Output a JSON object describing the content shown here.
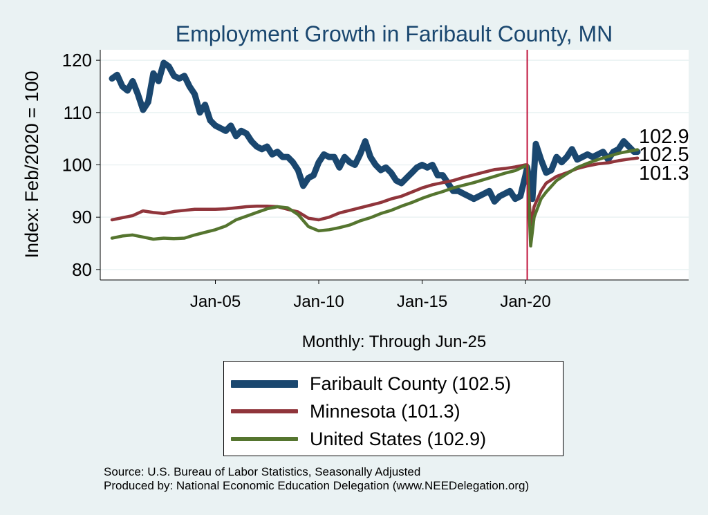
{
  "chart_data": {
    "type": "line",
    "title": "Employment Growth in Faribault  County, MN",
    "ylabel": "Index: Feb/2020 = 100",
    "xlabel": "Monthly: Through Jun-25",
    "x_range": [
      "2000-01",
      "2025-06"
    ],
    "ylim": [
      78,
      122
    ],
    "y_ticks": [
      80,
      90,
      100,
      110,
      120
    ],
    "x_ticks": [
      {
        "date": "2005-01",
        "label": "Jan-05"
      },
      {
        "date": "2010-01",
        "label": "Jan-10"
      },
      {
        "date": "2015-01",
        "label": "Jan-15"
      },
      {
        "date": "2020-01",
        "label": "Jan-20"
      }
    ],
    "reference_line": {
      "date": "2020-02",
      "color": "#c0143c"
    },
    "grid": true,
    "end_labels": [
      "102.9",
      "102.5",
      "101.3"
    ],
    "series": [
      {
        "name": "Faribault  County",
        "legend": "Faribault  County (102.5)",
        "color": "#1a476f",
        "dates": [
          "2000-01",
          "2000-04",
          "2000-07",
          "2000-10",
          "2001-01",
          "2001-04",
          "2001-07",
          "2001-10",
          "2002-01",
          "2002-04",
          "2002-07",
          "2002-10",
          "2003-01",
          "2003-04",
          "2003-07",
          "2003-10",
          "2004-01",
          "2004-04",
          "2004-07",
          "2004-10",
          "2005-01",
          "2005-04",
          "2005-07",
          "2005-10",
          "2006-01",
          "2006-04",
          "2006-07",
          "2006-10",
          "2007-01",
          "2007-04",
          "2007-07",
          "2007-10",
          "2008-01",
          "2008-04",
          "2008-07",
          "2008-10",
          "2009-01",
          "2009-04",
          "2009-07",
          "2009-10",
          "2010-01",
          "2010-04",
          "2010-07",
          "2010-10",
          "2011-01",
          "2011-04",
          "2011-07",
          "2011-10",
          "2012-01",
          "2012-04",
          "2012-07",
          "2012-10",
          "2013-01",
          "2013-04",
          "2013-07",
          "2013-10",
          "2014-01",
          "2014-04",
          "2014-07",
          "2014-10",
          "2015-01",
          "2015-04",
          "2015-07",
          "2015-10",
          "2016-01",
          "2016-04",
          "2016-07",
          "2016-10",
          "2017-01",
          "2017-04",
          "2017-07",
          "2017-10",
          "2018-01",
          "2018-04",
          "2018-07",
          "2018-10",
          "2019-01",
          "2019-04",
          "2019-07",
          "2019-10",
          "2020-01",
          "2020-02",
          "2020-04",
          "2020-05",
          "2020-07",
          "2020-10",
          "2021-01",
          "2021-04",
          "2021-07",
          "2021-10",
          "2022-01",
          "2022-04",
          "2022-07",
          "2022-10",
          "2023-01",
          "2023-04",
          "2023-07",
          "2023-10",
          "2024-01",
          "2024-04",
          "2024-07",
          "2024-10",
          "2025-01",
          "2025-04",
          "2025-06"
        ],
        "values": [
          116.5,
          117.2,
          115.0,
          114.2,
          116.0,
          113.5,
          110.5,
          112.0,
          117.5,
          116.0,
          119.5,
          118.8,
          117.0,
          116.5,
          117.0,
          115.0,
          113.5,
          110.0,
          111.5,
          108.5,
          107.5,
          107.0,
          106.5,
          107.5,
          105.5,
          106.5,
          106.0,
          104.5,
          103.5,
          103.0,
          103.5,
          102.0,
          102.5,
          101.5,
          101.5,
          100.5,
          99.0,
          96.0,
          97.5,
          98.0,
          100.5,
          102.0,
          101.5,
          101.5,
          99.5,
          101.5,
          100.5,
          100.0,
          102.0,
          104.5,
          101.5,
          100.0,
          99.0,
          99.5,
          98.5,
          97.0,
          96.5,
          97.5,
          98.5,
          99.5,
          100.0,
          99.5,
          100.0,
          98.0,
          98.0,
          96.5,
          95.0,
          95.0,
          94.5,
          94.0,
          93.5,
          94.0,
          94.5,
          95.0,
          93.0,
          94.0,
          94.5,
          95.0,
          93.5,
          94.0,
          98.0,
          99.5,
          95.5,
          93.5,
          104.0,
          101.0,
          98.5,
          99.0,
          101.5,
          100.5,
          101.5,
          103.0,
          101.0,
          101.5,
          102.0,
          101.5,
          102.0,
          102.5,
          101.0,
          102.5,
          103.0,
          104.5,
          103.5,
          102.5,
          102.5
        ]
      },
      {
        "name": "Minnesota",
        "legend": "Minnesota (101.3)",
        "color": "#90353b",
        "dates": [
          "2000-01",
          "2000-07",
          "2001-01",
          "2001-07",
          "2002-01",
          "2002-07",
          "2003-01",
          "2003-07",
          "2004-01",
          "2004-07",
          "2005-01",
          "2005-07",
          "2006-01",
          "2006-07",
          "2007-01",
          "2007-07",
          "2008-01",
          "2008-07",
          "2009-01",
          "2009-07",
          "2010-01",
          "2010-07",
          "2011-01",
          "2011-07",
          "2012-01",
          "2012-07",
          "2013-01",
          "2013-07",
          "2014-01",
          "2014-07",
          "2015-01",
          "2015-07",
          "2016-01",
          "2016-07",
          "2017-01",
          "2017-07",
          "2018-01",
          "2018-07",
          "2019-01",
          "2019-07",
          "2020-01",
          "2020-02",
          "2020-04",
          "2020-06",
          "2020-10",
          "2021-01",
          "2021-07",
          "2022-01",
          "2022-07",
          "2023-01",
          "2023-07",
          "2024-01",
          "2024-07",
          "2025-01",
          "2025-06"
        ],
        "values": [
          89.5,
          89.9,
          90.3,
          91.2,
          90.9,
          90.7,
          91.1,
          91.3,
          91.5,
          91.5,
          91.5,
          91.6,
          91.8,
          92.0,
          92.1,
          92.1,
          92.0,
          91.5,
          91.0,
          89.8,
          89.5,
          90.0,
          90.8,
          91.3,
          91.8,
          92.3,
          92.8,
          93.5,
          94.0,
          94.8,
          95.6,
          96.2,
          96.6,
          97.0,
          97.6,
          98.1,
          98.6,
          99.1,
          99.3,
          99.6,
          100.0,
          100.0,
          88.5,
          92.0,
          95.0,
          96.5,
          97.8,
          98.5,
          99.3,
          99.8,
          100.2,
          100.4,
          100.8,
          101.1,
          101.3
        ]
      },
      {
        "name": "United States",
        "legend": "United States (102.9)",
        "color": "#55752f",
        "dates": [
          "2000-01",
          "2000-07",
          "2001-01",
          "2001-07",
          "2002-01",
          "2002-07",
          "2003-01",
          "2003-07",
          "2004-01",
          "2004-07",
          "2005-01",
          "2005-07",
          "2006-01",
          "2006-07",
          "2007-01",
          "2007-07",
          "2008-01",
          "2008-07",
          "2009-01",
          "2009-07",
          "2010-01",
          "2010-07",
          "2011-01",
          "2011-07",
          "2012-01",
          "2012-07",
          "2013-01",
          "2013-07",
          "2014-01",
          "2014-07",
          "2015-01",
          "2015-07",
          "2016-01",
          "2016-07",
          "2017-01",
          "2017-07",
          "2018-01",
          "2018-07",
          "2019-01",
          "2019-07",
          "2020-01",
          "2020-02",
          "2020-04",
          "2020-06",
          "2020-10",
          "2021-01",
          "2021-07",
          "2022-01",
          "2022-07",
          "2023-01",
          "2023-07",
          "2024-01",
          "2024-07",
          "2025-01",
          "2025-06"
        ],
        "values": [
          86.0,
          86.4,
          86.6,
          86.2,
          85.8,
          86.0,
          85.9,
          86.0,
          86.6,
          87.1,
          87.6,
          88.3,
          89.5,
          90.2,
          90.9,
          91.6,
          92.0,
          91.8,
          90.5,
          88.2,
          87.4,
          87.6,
          88.0,
          88.5,
          89.3,
          89.9,
          90.7,
          91.3,
          92.1,
          92.8,
          93.6,
          94.3,
          94.9,
          95.6,
          96.1,
          96.6,
          97.2,
          97.8,
          98.4,
          98.9,
          99.8,
          100.0,
          84.5,
          90.0,
          93.5,
          94.8,
          97.0,
          98.3,
          99.5,
          100.3,
          101.0,
          101.6,
          102.2,
          102.6,
          102.9
        ]
      }
    ]
  },
  "footer": {
    "source": "Source: U.S. Bureau of Labor Statistics, Seasonally Adjusted",
    "produced_by": "Produced by: National Economic Education Delegation (www.NEEDelegation.org)"
  }
}
